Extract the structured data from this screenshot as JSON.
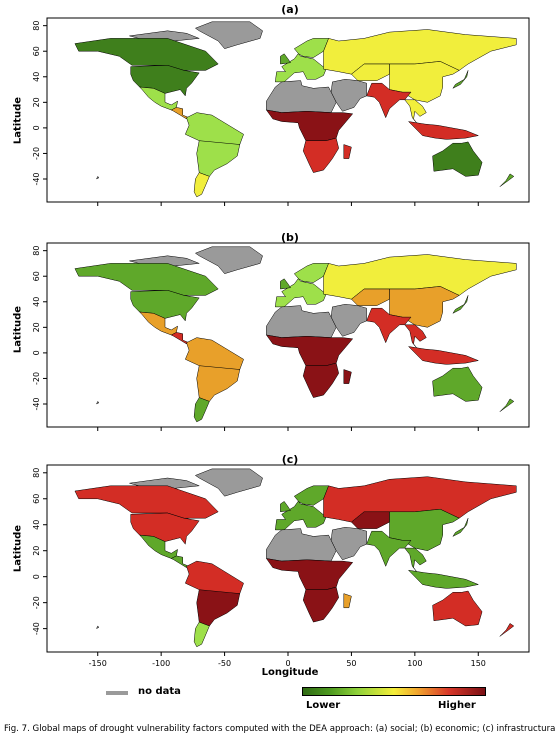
{
  "figure": {
    "caption": "Fig. 7. Global maps of drought vulnerability factors computed with the DEA approach: (a) social; (b) economic; (c) infrastructural.",
    "panels": [
      {
        "label": "(a)"
      },
      {
        "label": "(b)"
      },
      {
        "label": "(c)"
      }
    ],
    "ylabel": "Latitude",
    "xlabel": "Longitude",
    "y_ticks": [
      "80",
      "60",
      "40",
      "20",
      "0",
      "-20",
      "-40"
    ],
    "x_ticks": [
      "-150",
      "-100",
      "-50",
      "0",
      "50",
      "100",
      "150"
    ],
    "lon_range": [
      -190,
      190
    ],
    "lat_range": [
      -58,
      86
    ],
    "legend": {
      "nodata_label": "no data",
      "nodata_color": "#9a9a9a",
      "low_label": "Lower",
      "high_label": "Higher"
    },
    "colors": {
      "dark_green": "#3f7f1c",
      "green": "#5fa82a",
      "light_green": "#9ee04a",
      "yellow": "#f1ee3c",
      "orange": "#e8a02a",
      "red": "#d32d25",
      "dark_red": "#8a1216",
      "gray": "#9a9a9a"
    }
  }
}
